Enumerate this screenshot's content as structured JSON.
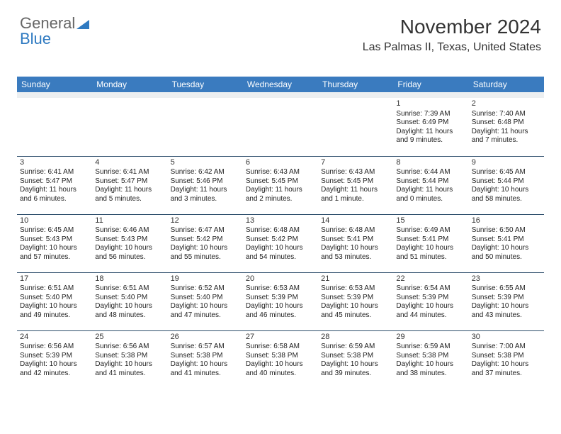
{
  "logo": {
    "text1": "General",
    "text2": "Blue",
    "color_gray": "#666666",
    "color_blue": "#2f7ac1"
  },
  "header": {
    "title": "November 2024",
    "subtitle": "Las Palmas II, Texas, United States",
    "title_fontsize": 28,
    "subtitle_fontsize": 16
  },
  "calendar": {
    "type": "table",
    "header_bg": "#3a7bbf",
    "header_fg": "#ffffff",
    "border_color": "#2d4d6b",
    "spacer_bg": "#eceff1",
    "cell_fontsize": 10,
    "daynum_fontsize": 11,
    "columns": [
      "Sunday",
      "Monday",
      "Tuesday",
      "Wednesday",
      "Thursday",
      "Friday",
      "Saturday"
    ],
    "weeks": [
      [
        null,
        null,
        null,
        null,
        null,
        {
          "day": "1",
          "sunrise": "7:39 AM",
          "sunset": "6:49 PM",
          "daylight": "11 hours and 9 minutes."
        },
        {
          "day": "2",
          "sunrise": "7:40 AM",
          "sunset": "6:48 PM",
          "daylight": "11 hours and 7 minutes."
        }
      ],
      [
        {
          "day": "3",
          "sunrise": "6:41 AM",
          "sunset": "5:47 PM",
          "daylight": "11 hours and 6 minutes."
        },
        {
          "day": "4",
          "sunrise": "6:41 AM",
          "sunset": "5:47 PM",
          "daylight": "11 hours and 5 minutes."
        },
        {
          "day": "5",
          "sunrise": "6:42 AM",
          "sunset": "5:46 PM",
          "daylight": "11 hours and 3 minutes."
        },
        {
          "day": "6",
          "sunrise": "6:43 AM",
          "sunset": "5:45 PM",
          "daylight": "11 hours and 2 minutes."
        },
        {
          "day": "7",
          "sunrise": "6:43 AM",
          "sunset": "5:45 PM",
          "daylight": "11 hours and 1 minute."
        },
        {
          "day": "8",
          "sunrise": "6:44 AM",
          "sunset": "5:44 PM",
          "daylight": "11 hours and 0 minutes."
        },
        {
          "day": "9",
          "sunrise": "6:45 AM",
          "sunset": "5:44 PM",
          "daylight": "10 hours and 58 minutes."
        }
      ],
      [
        {
          "day": "10",
          "sunrise": "6:45 AM",
          "sunset": "5:43 PM",
          "daylight": "10 hours and 57 minutes."
        },
        {
          "day": "11",
          "sunrise": "6:46 AM",
          "sunset": "5:43 PM",
          "daylight": "10 hours and 56 minutes."
        },
        {
          "day": "12",
          "sunrise": "6:47 AM",
          "sunset": "5:42 PM",
          "daylight": "10 hours and 55 minutes."
        },
        {
          "day": "13",
          "sunrise": "6:48 AM",
          "sunset": "5:42 PM",
          "daylight": "10 hours and 54 minutes."
        },
        {
          "day": "14",
          "sunrise": "6:48 AM",
          "sunset": "5:41 PM",
          "daylight": "10 hours and 53 minutes."
        },
        {
          "day": "15",
          "sunrise": "6:49 AM",
          "sunset": "5:41 PM",
          "daylight": "10 hours and 51 minutes."
        },
        {
          "day": "16",
          "sunrise": "6:50 AM",
          "sunset": "5:41 PM",
          "daylight": "10 hours and 50 minutes."
        }
      ],
      [
        {
          "day": "17",
          "sunrise": "6:51 AM",
          "sunset": "5:40 PM",
          "daylight": "10 hours and 49 minutes."
        },
        {
          "day": "18",
          "sunrise": "6:51 AM",
          "sunset": "5:40 PM",
          "daylight": "10 hours and 48 minutes."
        },
        {
          "day": "19",
          "sunrise": "6:52 AM",
          "sunset": "5:40 PM",
          "daylight": "10 hours and 47 minutes."
        },
        {
          "day": "20",
          "sunrise": "6:53 AM",
          "sunset": "5:39 PM",
          "daylight": "10 hours and 46 minutes."
        },
        {
          "day": "21",
          "sunrise": "6:53 AM",
          "sunset": "5:39 PM",
          "daylight": "10 hours and 45 minutes."
        },
        {
          "day": "22",
          "sunrise": "6:54 AM",
          "sunset": "5:39 PM",
          "daylight": "10 hours and 44 minutes."
        },
        {
          "day": "23",
          "sunrise": "6:55 AM",
          "sunset": "5:39 PM",
          "daylight": "10 hours and 43 minutes."
        }
      ],
      [
        {
          "day": "24",
          "sunrise": "6:56 AM",
          "sunset": "5:39 PM",
          "daylight": "10 hours and 42 minutes."
        },
        {
          "day": "25",
          "sunrise": "6:56 AM",
          "sunset": "5:38 PM",
          "daylight": "10 hours and 41 minutes."
        },
        {
          "day": "26",
          "sunrise": "6:57 AM",
          "sunset": "5:38 PM",
          "daylight": "10 hours and 41 minutes."
        },
        {
          "day": "27",
          "sunrise": "6:58 AM",
          "sunset": "5:38 PM",
          "daylight": "10 hours and 40 minutes."
        },
        {
          "day": "28",
          "sunrise": "6:59 AM",
          "sunset": "5:38 PM",
          "daylight": "10 hours and 39 minutes."
        },
        {
          "day": "29",
          "sunrise": "6:59 AM",
          "sunset": "5:38 PM",
          "daylight": "10 hours and 38 minutes."
        },
        {
          "day": "30",
          "sunrise": "7:00 AM",
          "sunset": "5:38 PM",
          "daylight": "10 hours and 37 minutes."
        }
      ]
    ],
    "labels": {
      "sunrise": "Sunrise:",
      "sunset": "Sunset:",
      "daylight": "Daylight:"
    }
  }
}
